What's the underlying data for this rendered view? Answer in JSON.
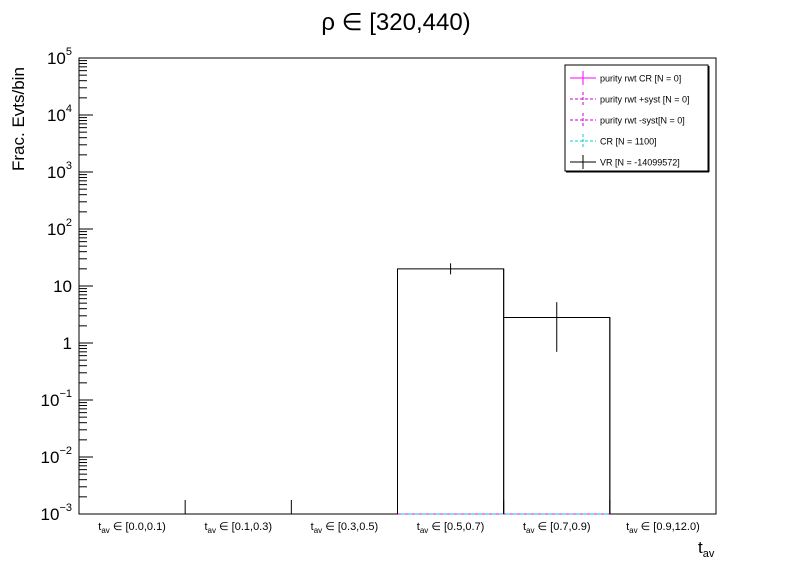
{
  "chart_data": {
    "type": "bar",
    "title": "ρ ∈ [320,440)",
    "ylabel": "Frac. Evts/bin",
    "xlabel": "t",
    "xlabel_sub": "av",
    "yscale": "log",
    "ylim": [
      0.001,
      100000
    ],
    "y_ticks": [
      {
        "value": 100000,
        "base": "10",
        "exp": "5"
      },
      {
        "value": 10000,
        "base": "10",
        "exp": "4"
      },
      {
        "value": 1000,
        "base": "10",
        "exp": "3"
      },
      {
        "value": 100,
        "base": "10",
        "exp": "2"
      },
      {
        "value": 10,
        "base": "10",
        "exp": ""
      },
      {
        "value": 1,
        "base": "1",
        "exp": ""
      },
      {
        "value": 0.1,
        "base": "10",
        "exp": "−1"
      },
      {
        "value": 0.01,
        "base": "10",
        "exp": "−2"
      },
      {
        "value": 0.001,
        "base": "10",
        "exp": "−3"
      }
    ],
    "categories": [
      {
        "sym": "t",
        "sub": "av",
        "rest": " ∈ [0.0,0.1)"
      },
      {
        "sym": "t",
        "sub": "av",
        "rest": " ∈ [0.1,0.3)"
      },
      {
        "sym": "t",
        "sub": "av",
        "rest": " ∈ [0.3,0.5)"
      },
      {
        "sym": "t",
        "sub": "av",
        "rest": " ∈ [0.5,0.7)"
      },
      {
        "sym": "t",
        "sub": "av",
        "rest": " ∈ [0.7,0.9)"
      },
      {
        "sym": "t",
        "sub": "av",
        "rest": " ∈ [0.9,12.0)"
      }
    ],
    "series": [
      {
        "name": "purity rwt CR [N = 0]",
        "color": "#ff00ff",
        "style": "solid",
        "values": [
          0,
          0,
          0,
          0,
          0,
          0
        ]
      },
      {
        "name": "purity rwt +syst [N = 0]",
        "color": "#cc00cc",
        "style": "dashed",
        "values": [
          0,
          0,
          0,
          0,
          0,
          0
        ]
      },
      {
        "name": "purity rwt -syst[N = 0]",
        "color": "#cc00cc",
        "style": "dashed",
        "values": [
          0,
          0,
          0,
          0,
          0,
          0
        ]
      },
      {
        "name": "CR [N = 1100]",
        "color": "#00cccc",
        "style": "dashed",
        "values": [
          0,
          0,
          0,
          0,
          0,
          0
        ]
      },
      {
        "name": "VR [N = -14099572]",
        "color": "#000000",
        "style": "solid",
        "values": [
          0,
          0,
          0,
          20,
          2.8,
          0
        ],
        "err_low": [
          0,
          0,
          0,
          16,
          0.7,
          0
        ],
        "err_high": [
          0,
          0,
          0,
          25,
          5.2,
          0
        ]
      }
    ],
    "legend_position": "top-right",
    "grid": false
  }
}
